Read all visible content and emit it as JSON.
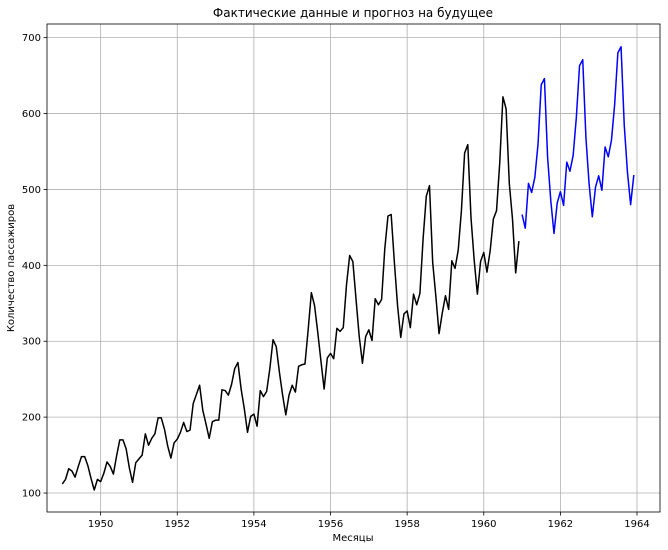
{
  "chart_data": {
    "type": "line",
    "title": "Фактические данные и прогноз на будущее",
    "xlabel": "Месяцы",
    "ylabel": "Количество пассажиров",
    "xlim": [
      1948.6,
      1964.6
    ],
    "ylim": [
      75,
      718
    ],
    "xticks": [
      1950,
      1952,
      1954,
      1956,
      1958,
      1960,
      1962,
      1964
    ],
    "yticks": [
      100,
      200,
      300,
      400,
      500,
      600,
      700
    ],
    "grid": true,
    "series": [
      {
        "color": "#000000",
        "x_start": 1949.0,
        "x_step": 0.0833333,
        "values": [
          112,
          118,
          132,
          129,
          121,
          135,
          148,
          148,
          136,
          119,
          104,
          118,
          115,
          126,
          141,
          135,
          125,
          149,
          170,
          170,
          158,
          133,
          114,
          140,
          145,
          150,
          178,
          163,
          172,
          178,
          199,
          199,
          184,
          162,
          146,
          166,
          171,
          180,
          193,
          181,
          183,
          218,
          230,
          242,
          209,
          191,
          172,
          194,
          196,
          196,
          236,
          235,
          229,
          243,
          264,
          272,
          237,
          211,
          180,
          201,
          204,
          188,
          235,
          227,
          234,
          264,
          302,
          293,
          259,
          229,
          203,
          229,
          242,
          233,
          267,
          269,
          270,
          315,
          364,
          347,
          312,
          274,
          237,
          278,
          284,
          277,
          317,
          313,
          318,
          374,
          413,
          405,
          355,
          306,
          271,
          306,
          315,
          301,
          356,
          348,
          355,
          422,
          465,
          467,
          404,
          347,
          305,
          336,
          340,
          318,
          362,
          348,
          363,
          435,
          491,
          505,
          404,
          359,
          310,
          337,
          360,
          342,
          406,
          396,
          420,
          472,
          548,
          559,
          463,
          407,
          362,
          405,
          417,
          391,
          419,
          461,
          472,
          535,
          622,
          606,
          508,
          461,
          390,
          432
        ]
      },
      {
        "color": "#0000ff",
        "x_start": 1961.0,
        "x_step": 0.0833333,
        "values": [
          467,
          449,
          508,
          496,
          516,
          560,
          638,
          646,
          542,
          485,
          442,
          482,
          497,
          479,
          536,
          524,
          545,
          595,
          663,
          671,
          568,
          507,
          464,
          503,
          518,
          499,
          556,
          543,
          565,
          612,
          680,
          688,
          585,
          523,
          480,
          519
        ]
      }
    ]
  }
}
